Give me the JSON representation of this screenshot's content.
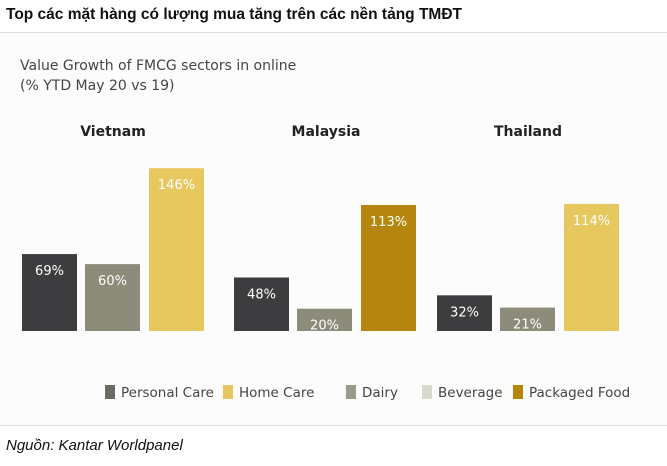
{
  "header": {
    "title": "Top các mặt hàng có lượng mua tăng trên các nền tảng TMĐT"
  },
  "chart_data": {
    "type": "bar",
    "title": "Value Growth of FMCG sectors in online",
    "subtitle": "(% YTD May 20 vs 19)",
    "groups": [
      {
        "name": "Vietnam",
        "bars": [
          {
            "series": "Personal Care",
            "value": 69,
            "label": "69%"
          },
          {
            "series": "Dairy",
            "value": 60,
            "label": "60%"
          },
          {
            "series": "Home Care",
            "value": 146,
            "label": "146%"
          }
        ]
      },
      {
        "name": "Malaysia",
        "bars": [
          {
            "series": "Personal Care",
            "value": 48,
            "label": "48%"
          },
          {
            "series": "Dairy",
            "value": 20,
            "label": "20%"
          },
          {
            "series": "Packaged Food",
            "value": 113,
            "label": "113%"
          }
        ]
      },
      {
        "name": "Thailand",
        "bars": [
          {
            "series": "Personal Care",
            "value": 32,
            "label": "32%"
          },
          {
            "series": "Dairy",
            "value": 21,
            "label": "21%"
          },
          {
            "series": "Home Care",
            "value": 114,
            "label": "114%"
          }
        ]
      }
    ],
    "legend": [
      {
        "name": "Personal Care",
        "color": "#6b6b62"
      },
      {
        "name": "Home Care",
        "color": "#e6c85e"
      },
      {
        "name": "Dairy",
        "color": "#9a9a8c"
      },
      {
        "name": "Beverage",
        "color": "#d9d9cc"
      },
      {
        "name": "Packaged Food",
        "color": "#b5860d"
      }
    ],
    "bar_colors": {
      "Personal Care": "#3d3d3f",
      "Dairy": "#8d8c7b",
      "Home Care": "#e6c85e",
      "Packaged Food": "#b5860d"
    },
    "legend_position": "bottom",
    "grid": false
  },
  "source": {
    "text": "Nguồn: Kantar Worldpanel"
  }
}
